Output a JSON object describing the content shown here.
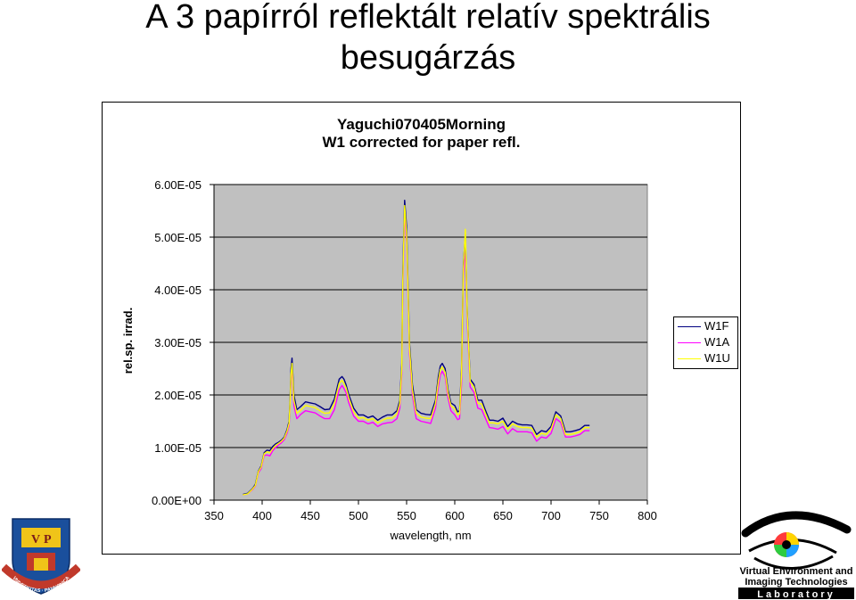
{
  "slide_title_line1": "A 3 papírról reflektált relatív spektrális",
  "slide_title_line2": "besugárzás",
  "colors": {
    "plot_bg": "#c0c0c0",
    "W1F": "#000080",
    "W1A": "#ff00ff",
    "W1U": "#ffff00"
  },
  "logos": {
    "left": {
      "icon": "university-seal-icon",
      "text": "VNIVERSITAS · PANNONICA"
    },
    "right": {
      "icon": "eye-logo-icon",
      "line1": "Virtual Environment and",
      "line2": "Imaging Technologies",
      "line3": "Laboratory"
    }
  },
  "chart_data": {
    "type": "line",
    "title": "Yaguchi070405Morning",
    "subtitle": "W1 corrected for paper refl.",
    "xlabel": "wavelength, nm",
    "ylabel": "rel.sp. irrad.",
    "xlim": [
      350,
      800
    ],
    "ylim": [
      0,
      6e-05
    ],
    "x_ticks": [
      "350",
      "400",
      "450",
      "500",
      "550",
      "600",
      "650",
      "700",
      "750",
      "800"
    ],
    "y_ticks": [
      "0.00E+00",
      "1.00E-05",
      "2.00E-05",
      "3.00E-05",
      "4.00E-05",
      "5.00E-05",
      "6.00E-05"
    ],
    "grid": "horizontal",
    "legend_position": "right",
    "x": [
      380,
      385,
      390,
      393,
      396,
      399,
      402,
      405,
      408,
      411,
      414,
      417,
      420,
      423,
      426,
      428,
      429,
      430,
      431,
      433,
      436,
      440,
      445,
      450,
      455,
      460,
      465,
      470,
      475,
      480,
      483,
      485,
      487,
      490,
      495,
      500,
      505,
      510,
      515,
      520,
      525,
      530,
      535,
      540,
      543,
      545,
      546,
      548,
      550,
      553,
      556,
      560,
      565,
      570,
      575,
      580,
      583,
      585,
      587,
      590,
      593,
      596,
      600,
      603,
      605,
      607,
      609,
      611,
      613,
      616,
      620,
      624,
      628,
      632,
      636,
      640,
      645,
      650,
      655,
      660,
      665,
      670,
      675,
      680,
      685,
      690,
      695,
      700,
      705,
      710,
      715,
      720,
      725,
      730,
      735,
      740
    ],
    "series": [
      {
        "name": "W1F",
        "values": [
          1.1e-06,
          1.3e-06,
          2.2e-06,
          3e-06,
          5.5e-06,
          6.5e-06,
          9e-06,
          9.5e-06,
          9.4e-06,
          1.02e-05,
          1.07e-05,
          1.1e-05,
          1.14e-05,
          1.2e-05,
          1.35e-05,
          1.5e-05,
          1.9e-05,
          2.5e-05,
          2.7e-05,
          2e-05,
          1.72e-05,
          1.78e-05,
          1.87e-05,
          1.85e-05,
          1.83e-05,
          1.78e-05,
          1.72e-05,
          1.73e-05,
          1.92e-05,
          2.3e-05,
          2.35e-05,
          2.3e-05,
          2.2e-05,
          2e-05,
          1.75e-05,
          1.62e-05,
          1.62e-05,
          1.57e-05,
          1.6e-05,
          1.52e-05,
          1.58e-05,
          1.62e-05,
          1.62e-05,
          1.7e-05,
          1.9e-05,
          2.6e-05,
          4.3e-05,
          5.7e-05,
          5.2e-05,
          3e-05,
          2.2e-05,
          1.72e-05,
          1.65e-05,
          1.63e-05,
          1.62e-05,
          1.9e-05,
          2.35e-05,
          2.55e-05,
          2.6e-05,
          2.5e-05,
          2.1e-05,
          1.85e-05,
          1.8e-05,
          1.68e-05,
          1.7e-05,
          2.5e-05,
          4.5e-05,
          5.05e-05,
          3.6e-05,
          2.3e-05,
          2.2e-05,
          1.9e-05,
          1.9e-05,
          1.7e-05,
          1.52e-05,
          1.52e-05,
          1.5e-05,
          1.56e-05,
          1.4e-05,
          1.5e-05,
          1.45e-05,
          1.43e-05,
          1.43e-05,
          1.42e-05,
          1.25e-05,
          1.32e-05,
          1.3e-05,
          1.4e-05,
          1.68e-05,
          1.6e-05,
          1.3e-05,
          1.3e-05,
          1.32e-05,
          1.35e-05,
          1.42e-05,
          1.42e-05
        ]
      },
      {
        "name": "W1A",
        "values": [
          1e-06,
          1.2e-06,
          2e-06,
          2.7e-06,
          5.2e-06,
          6e-06,
          8.5e-06,
          8.6e-06,
          8.4e-06,
          9.4e-06,
          1e-05,
          1.05e-05,
          1.09e-05,
          1.15e-05,
          1.28e-05,
          1.42e-05,
          1.8e-05,
          2.3e-05,
          2.5e-05,
          1.8e-05,
          1.55e-05,
          1.63e-05,
          1.7e-05,
          1.68e-05,
          1.66e-05,
          1.6e-05,
          1.55e-05,
          1.55e-05,
          1.72e-05,
          2.1e-05,
          2.18e-05,
          2.12e-05,
          2.05e-05,
          1.85e-05,
          1.6e-05,
          1.5e-05,
          1.5e-05,
          1.45e-05,
          1.48e-05,
          1.4e-05,
          1.45e-05,
          1.47e-05,
          1.48e-05,
          1.55e-05,
          1.75e-05,
          2.4e-05,
          4e-05,
          5.5e-05,
          4.9e-05,
          2.8e-05,
          2e-05,
          1.55e-05,
          1.5e-05,
          1.48e-05,
          1.46e-05,
          1.75e-05,
          2.15e-05,
          2.38e-05,
          2.45e-05,
          2.35e-05,
          1.95e-05,
          1.7e-05,
          1.62e-05,
          1.53e-05,
          1.55e-05,
          2.2e-05,
          4.2e-05,
          4.85e-05,
          3.4e-05,
          2.15e-05,
          2.05e-05,
          1.75e-05,
          1.72e-05,
          1.55e-05,
          1.38e-05,
          1.37e-05,
          1.35e-05,
          1.4e-05,
          1.26e-05,
          1.36e-05,
          1.3e-05,
          1.3e-05,
          1.3e-05,
          1.28e-05,
          1.12e-05,
          1.2e-05,
          1.18e-05,
          1.27e-05,
          1.55e-05,
          1.48e-05,
          1.2e-05,
          1.2e-05,
          1.22e-05,
          1.25e-05,
          1.32e-05,
          1.32e-05
        ]
      },
      {
        "name": "W1U",
        "values": [
          1e-06,
          1.2e-06,
          2.1e-06,
          2.8e-06,
          5.4e-06,
          6.3e-06,
          8.8e-06,
          9.2e-06,
          9e-06,
          9.8e-06,
          1.04e-05,
          1.08e-05,
          1.12e-05,
          1.18e-05,
          1.32e-05,
          1.46e-05,
          1.85e-05,
          2.4e-05,
          2.6e-05,
          1.9e-05,
          1.65e-05,
          1.71e-05,
          1.8e-05,
          1.78e-05,
          1.76e-05,
          1.7e-05,
          1.65e-05,
          1.66e-05,
          1.84e-05,
          2.22e-05,
          2.28e-05,
          2.22e-05,
          2.14e-05,
          1.94e-05,
          1.68e-05,
          1.56e-05,
          1.57e-05,
          1.52e-05,
          1.55e-05,
          1.47e-05,
          1.52e-05,
          1.56e-05,
          1.56e-05,
          1.64e-05,
          1.84e-05,
          2.5e-05,
          4.15e-05,
          5.6e-05,
          5.05e-05,
          2.9e-05,
          2.1e-05,
          1.65e-05,
          1.58e-05,
          1.56e-05,
          1.55e-05,
          1.84e-05,
          2.26e-05,
          2.48e-05,
          2.53e-05,
          2.43e-05,
          2.04e-05,
          1.79e-05,
          1.74e-05,
          1.62e-05,
          1.64e-05,
          2.4e-05,
          4.4e-05,
          5.15e-05,
          3.55e-05,
          2.25e-05,
          2.15e-05,
          1.84e-05,
          1.83e-05,
          1.64e-05,
          1.47e-05,
          1.47e-05,
          1.45e-05,
          1.5e-05,
          1.35e-05,
          1.45e-05,
          1.4e-05,
          1.38e-05,
          1.38e-05,
          1.37e-05,
          1.2e-05,
          1.27e-05,
          1.25e-05,
          1.35e-05,
          1.62e-05,
          1.55e-05,
          1.25e-05,
          1.25e-05,
          1.27e-05,
          1.3e-05,
          1.38e-05,
          1.38e-05
        ]
      }
    ]
  }
}
